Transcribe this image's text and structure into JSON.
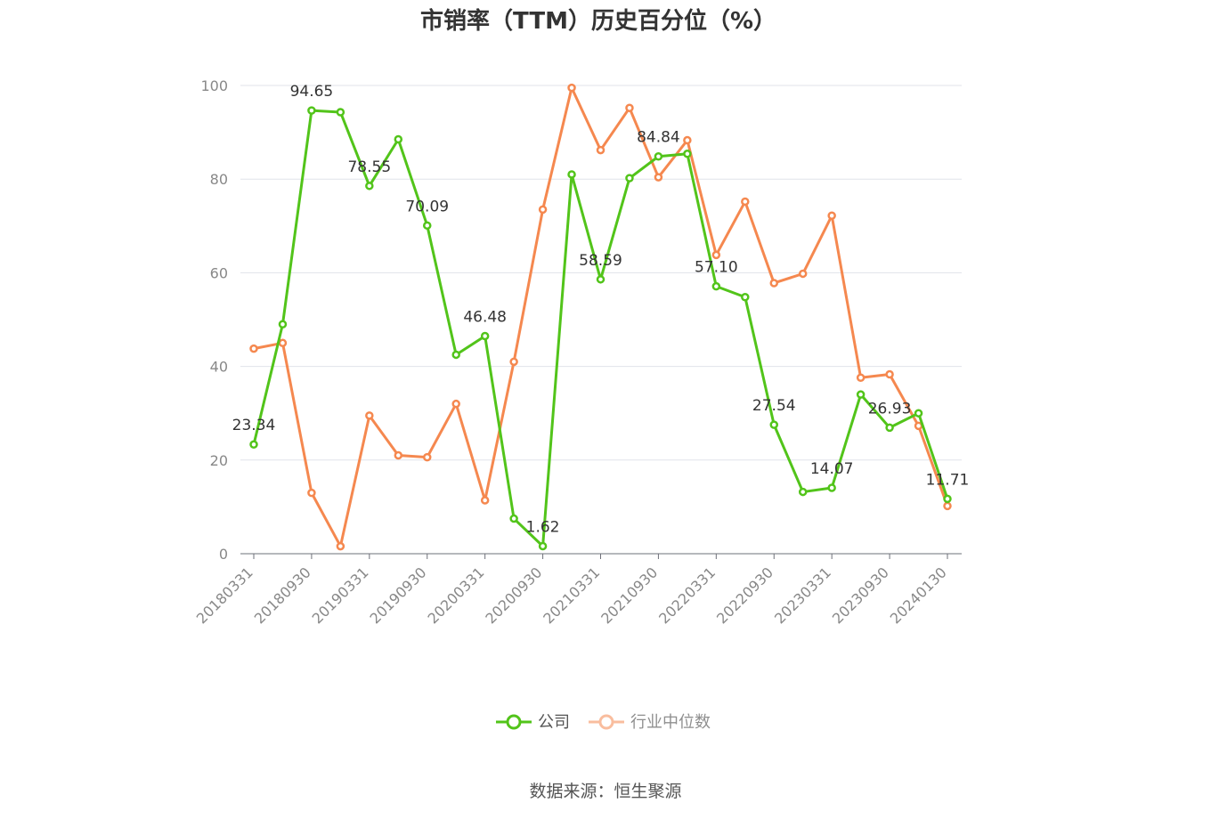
{
  "chart_data": {
    "type": "line",
    "title": "市销率（TTM）历史百分位（%）",
    "ylim": [
      0,
      100
    ],
    "yticks": [
      0,
      20,
      40,
      60,
      80,
      100
    ],
    "xtick_labels": [
      "20180331",
      "20180930",
      "20190331",
      "20190930",
      "20200331",
      "20200930",
      "20210331",
      "20210930",
      "20220331",
      "20220930",
      "20230331",
      "20230930",
      "20240130"
    ],
    "x": [
      "20180331",
      "20180630",
      "20180930",
      "20181231",
      "20190331",
      "20190630",
      "20190930",
      "20191231",
      "20200331",
      "20200630",
      "20200930",
      "20201231",
      "20210331",
      "20210630",
      "20210930",
      "20211231",
      "20220331",
      "20220630",
      "20220930",
      "20221231",
      "20230331",
      "20230630",
      "20230930",
      "20231231",
      "20240130"
    ],
    "series": [
      {
        "name": "公司",
        "color": "#52c41a",
        "values": [
          23.34,
          49.0,
          94.65,
          94.3,
          78.55,
          88.5,
          70.09,
          42.5,
          46.48,
          7.5,
          1.62,
          81.0,
          58.59,
          80.2,
          84.84,
          85.4,
          57.1,
          54.8,
          27.54,
          13.2,
          14.07,
          34.0,
          26.93,
          30.0,
          11.71
        ],
        "labels": {
          "0": "23.34",
          "2": "94.65",
          "4": "78.55",
          "6": "70.09",
          "8": "46.48",
          "10": "1.62",
          "12": "58.59",
          "14": "84.84",
          "16": "57.10",
          "18": "27.54",
          "20": "14.07",
          "22": "26.93",
          "24": "11.71"
        }
      },
      {
        "name": "行业中位数",
        "color": "#f5884f",
        "values": [
          43.8,
          45.0,
          13.0,
          1.6,
          29.5,
          21.0,
          20.6,
          32.0,
          11.4,
          41.0,
          73.5,
          99.5,
          86.2,
          95.2,
          80.4,
          88.3,
          63.8,
          75.2,
          57.8,
          59.8,
          72.2,
          37.6,
          38.3,
          27.3,
          10.2
        ]
      }
    ],
    "legend": "bottom-center",
    "grid": true
  },
  "footer": {
    "source": "数据来源：恒生聚源"
  }
}
